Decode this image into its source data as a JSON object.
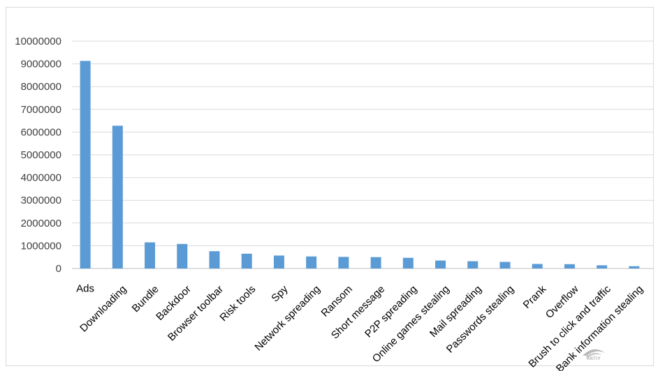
{
  "chart_data": {
    "type": "bar",
    "categories": [
      "Ads",
      "Downloading",
      "Bundle",
      "Backdoor",
      "Browser toolbar",
      "Risk tools",
      "Spy",
      "Network spreading",
      "Ransom",
      "Short message",
      "P2P spreading",
      "Online games stealing",
      "Mail spreading",
      "Passwords stealing",
      "Prank",
      "Overflow",
      "Brush to click and traffic",
      "Bank information stealing"
    ],
    "values": [
      9130000,
      6280000,
      1150000,
      1080000,
      760000,
      650000,
      570000,
      530000,
      510000,
      500000,
      470000,
      350000,
      320000,
      290000,
      200000,
      190000,
      140000,
      100000
    ],
    "yticks": [
      "0",
      "1000000",
      "2000000",
      "3000000",
      "4000000",
      "5000000",
      "6000000",
      "7000000",
      "8000000",
      "9000000",
      "10000000"
    ],
    "ylim": [
      0,
      10000000
    ],
    "bar_color": "#5b9bd5",
    "grid": true,
    "title": "",
    "xlabel": "",
    "ylabel": ""
  },
  "watermark": {
    "text": "ANTIY"
  }
}
